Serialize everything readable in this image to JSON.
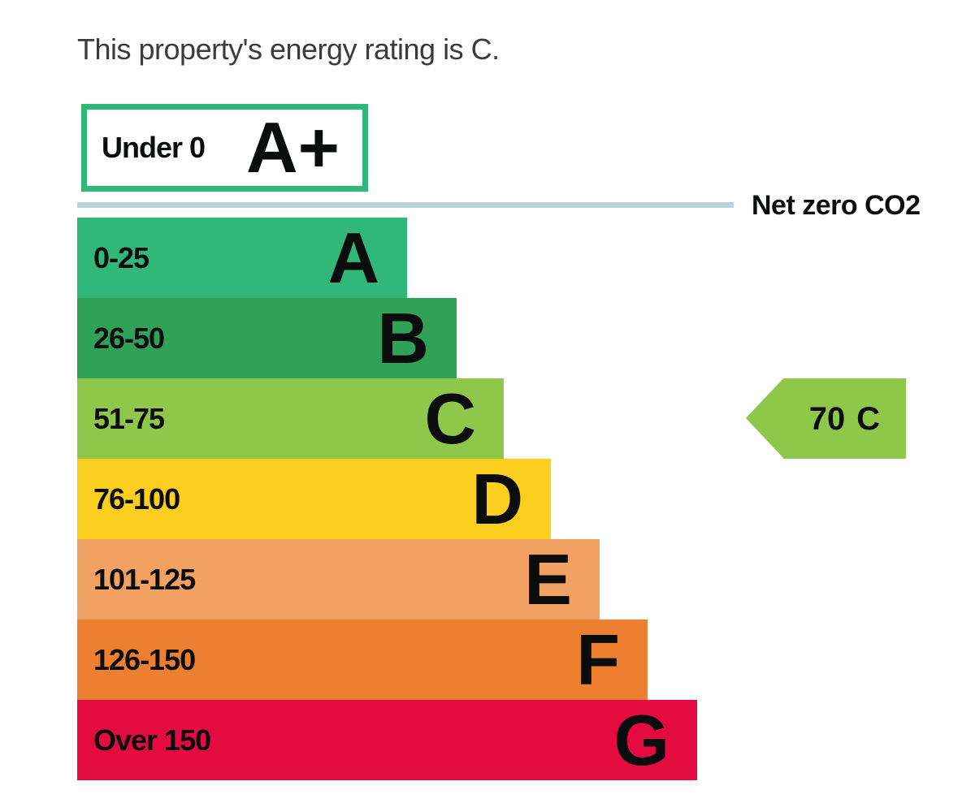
{
  "title": "This property's energy rating is C.",
  "scale": {
    "aplus": {
      "range": "Under 0",
      "grade": "A+",
      "border_color": "#2fb87a",
      "fill": "#ffffff"
    },
    "net_zero": {
      "label": "Net zero CO2",
      "line_color": "#b7d5db"
    },
    "bands": [
      {
        "range": "0-25",
        "grade": "A",
        "color": "#2fb87a"
      },
      {
        "range": "26-50",
        "grade": "B",
        "color": "#2fa258"
      },
      {
        "range": "51-75",
        "grade": "C",
        "color": "#8fc74b"
      },
      {
        "range": "76-100",
        "grade": "D",
        "color": "#fbce1f"
      },
      {
        "range": "101-125",
        "grade": "E",
        "color": "#f1a263"
      },
      {
        "range": "126-150",
        "grade": "F",
        "color": "#ec8030"
      },
      {
        "range": "Over 150",
        "grade": "G",
        "color": "#e40b41"
      }
    ]
  },
  "pointer": {
    "value": "70",
    "grade": "C",
    "color": "#8fc74b"
  },
  "chart_data": {
    "type": "bar",
    "title": "This property's energy rating is C.",
    "orientation": "horizontal",
    "categories": [
      "A+",
      "A",
      "B",
      "C",
      "D",
      "E",
      "F",
      "G"
    ],
    "ranges": [
      "Under 0",
      "0-25",
      "26-50",
      "51-75",
      "76-100",
      "101-125",
      "126-150",
      "Over 150"
    ],
    "colors": [
      "#ffffff",
      "#2fb87a",
      "#2fa258",
      "#8fc74b",
      "#fbce1f",
      "#f1a263",
      "#ec8030",
      "#e40b41"
    ],
    "current_rating": {
      "value": 70,
      "band": "C"
    },
    "annotations": [
      {
        "text": "Net zero CO2",
        "position": "line below A+ band"
      }
    ],
    "legend": false,
    "grid": false
  }
}
